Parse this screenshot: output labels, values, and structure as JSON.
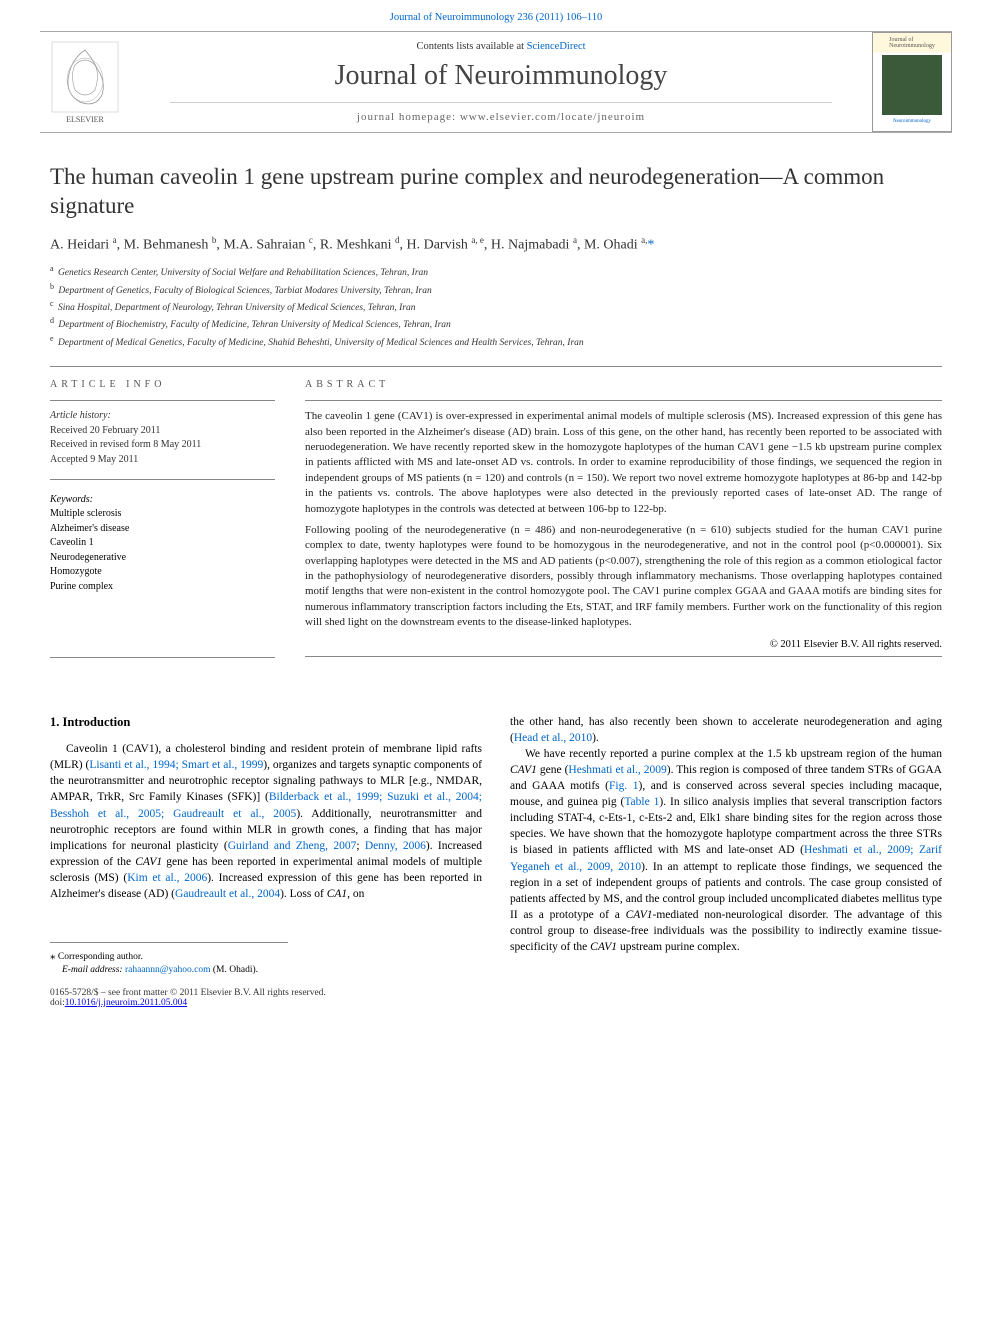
{
  "top_link": "Journal of Neuroimmunology 236 (2011) 106–110",
  "header": {
    "contents_prefix": "Contents lists available at ",
    "contents_link": "ScienceDirect",
    "journal_name": "Journal of Neuroimmunology",
    "homepage_label": "journal homepage: www.elsevier.com/locate/jneuroim",
    "cover_label": "Neuroimmunology"
  },
  "article": {
    "title": "The human caveolin 1 gene upstream purine complex and neurodegeneration—A common signature",
    "authors_html": "A. Heidari <sup>a</sup>, M. Behmanesh <sup>b</sup>, M.A. Sahraian <sup>c</sup>, R. Meshkani <sup>d</sup>, H. Darvish <sup>a, e</sup>, H. Najmabadi <sup>a</sup>, M. Ohadi <sup>a,</sup><a href='#'>*</a>",
    "affiliations": [
      {
        "sup": "a",
        "text": "Genetics Research Center, University of Social Welfare and Rehabilitation Sciences, Tehran, Iran"
      },
      {
        "sup": "b",
        "text": "Department of Genetics, Faculty of Biological Sciences, Tarbiat Modares University, Tehran, Iran"
      },
      {
        "sup": "c",
        "text": "Sina Hospital, Department of Neurology, Tehran University of Medical Sciences, Tehran, Iran"
      },
      {
        "sup": "d",
        "text": "Department of Biochemistry, Faculty of Medicine, Tehran University of Medical Sciences, Tehran, Iran"
      },
      {
        "sup": "e",
        "text": "Department of Medical Genetics, Faculty of Medicine, Shahid Beheshti, University of Medical Sciences and Health Services, Tehran, Iran"
      }
    ],
    "info_label": "ARTICLE INFO",
    "abstract_label": "ABSTRACT",
    "history_label": "Article history:",
    "history": [
      "Received 20 February 2011",
      "Received in revised form 8 May 2011",
      "Accepted 9 May 2011"
    ],
    "keywords_label": "Keywords:",
    "keywords": [
      "Multiple sclerosis",
      "Alzheimer's disease",
      "Caveolin 1",
      "Neurodegenerative",
      "Homozygote",
      "Purine complex"
    ],
    "abstract_paragraphs": [
      "The caveolin 1 gene (CAV1) is over-expressed in experimental animal models of multiple sclerosis (MS). Increased expression of this gene has also been reported in the Alzheimer's disease (AD) brain. Loss of this gene, on the other hand, has recently been reported to be associated with neruodegeneration. We have recently reported skew in the homozygote haplotypes of the human CAV1 gene −1.5 kb upstream purine complex in patients afflicted with MS and late-onset AD vs. controls. In order to examine reproducibility of those findings, we sequenced the region in independent groups of MS patients (n = 120) and controls (n = 150). We report two novel extreme homozygote haplotypes at 86-bp and 142-bp in the patients vs. controls. The above haplotypes were also detected in the previously reported cases of late-onset AD. The range of homozygote haplotypes in the controls was detected at between 106-bp to 122-bp.",
      "Following pooling of the neurodegenerative (n = 486) and non-neurodegenerative (n = 610) subjects studied for the human CAV1 purine complex to date, twenty haplotypes were found to be homozygous in the neurodegenerative, and not in the control pool (p<0.000001). Six overlapping haplotypes were detected in the MS and AD patients (p<0.007), strengthening the role of this region as a common etiological factor in the pathophysiology of neurodegenerative disorders, possibly through inflammatory mechanisms. Those overlapping haplotypes contained motif lengths that were non-existent in the control homozygote pool. The CAV1 purine complex GGAA and GAAA motifs are binding sites for numerous inflammatory transcription factors including the Ets, STAT, and IRF family members. Further work on the functionality of this region will shed light on the downstream events to the disease-linked haplotypes."
    ],
    "copyright": "© 2011 Elsevier B.V. All rights reserved."
  },
  "body": {
    "intro_heading": "1. Introduction",
    "left_col": "Caveolin 1 (CAV1), a cholesterol binding and resident protein of membrane lipid rafts (MLR) (<span class='ref'>Lisanti et al., 1994; Smart et al., 1999</span>), organizes and targets synaptic components of the neurotransmitter and neurotrophic receptor signaling pathways to MLR [e.g., NMDAR, AMPAR, TrkR, Src Family Kinases (SFK)] (<span class='ref'>Bilderback et al., 1999; Suzuki et al., 2004; Besshoh et al., 2005; Gaudreault et al., 2005</span>). Additionally, neurotransmitter and neurotrophic receptors are found within MLR in growth cones, a finding that has major implications for neuronal plasticity (<span class='ref'>Guirland and Zheng, 2007</span>; <span class='ref'>Denny, 2006</span>). Increased expression of the <i>CAV1</i> gene has been reported in experimental animal models of multiple sclerosis (MS) (<span class='ref'>Kim et al., 2006</span>). Increased expression of this gene has been reported in Alzheimer's disease (AD) (<span class='ref'>Gaudreault et al., 2004</span>). Loss of <i>CA1</i>, on",
    "right_col": "the other hand, has also recently been shown to accelerate neurodegeneration and aging (<span class='ref'>Head et al., 2010</span>).<br>&nbsp;&nbsp;&nbsp;&nbsp;We have recently reported a purine complex at the 1.5 kb upstream region of the human <i>CAV1</i> gene (<span class='ref'>Heshmati et al., 2009</span>). This region is composed of three tandem STRs of GGAA and GAAA motifs (<span class='ref'>Fig. 1</span>), and is conserved across several species including macaque, mouse, and guinea pig (<span class='ref'>Table 1</span>). In silico analysis implies that several transcription factors including STAT-4, c-Ets-1, c-Ets-2 and, Elk1 share binding sites for the region across those species. We have shown that the homozygote haplotype compartment across the three STRs is biased in patients afflicted with MS and late-onset AD (<span class='ref'>Heshmati et al., 2009; Zarif Yeganeh et al., 2009, 2010</span>). In an attempt to replicate those findings, we sequenced the region in a set of independent groups of patients and controls. The case group consisted of patients affected by MS, and the control group included uncomplicated diabetes mellitus type II as a prototype of a <i>CAV1</i>-mediated non-neurological disorder. The advantage of this control group to disease-free individuals was the possibility to indirectly examine tissue-specificity of the <i>CAV1</i> upstream purine complex."
  },
  "corresp": {
    "star_label": "* Corresponding author.",
    "email_label": "E-mail address:",
    "email": "rahaannn@yahoo.com",
    "email_who": "(M. Ohadi)."
  },
  "footer": {
    "line1": "0165-5728/$ – see front matter © 2011 Elsevier B.V. All rights reserved.",
    "line2": "doi:10.1016/j.jneuroim.2011.05.004"
  },
  "colors": {
    "link": "#0066cc",
    "text": "#000000",
    "muted": "#555555",
    "rule": "#888888",
    "elsevier_orange": "#ff6600"
  }
}
